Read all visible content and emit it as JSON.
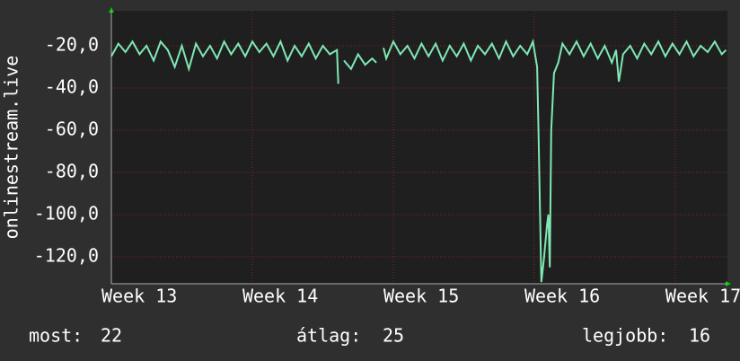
{
  "chart_data": {
    "type": "line",
    "y_label": "onlinestream.live",
    "xlim": [
      13,
      17.37
    ],
    "xticks": [
      {
        "value": 13,
        "label": "Week 13"
      },
      {
        "value": 14,
        "label": "Week 14"
      },
      {
        "value": 15,
        "label": "Week 15"
      },
      {
        "value": 16,
        "label": "Week 16"
      },
      {
        "value": 17,
        "label": "Week 17"
      }
    ],
    "ylim": [
      -132.8,
      -3.4
    ],
    "yticks": [
      {
        "value": -20,
        "label": "-20,0"
      },
      {
        "value": -40,
        "label": "-40,0"
      },
      {
        "value": -60,
        "label": "-60,0"
      },
      {
        "value": -80,
        "label": "-80,0"
      },
      {
        "value": -100,
        "label": "-100,0"
      },
      {
        "value": -120,
        "label": "-120,0"
      }
    ],
    "grid": true,
    "series": [
      {
        "color": "#7fe8b4",
        "x": [
          13.0,
          13.05,
          13.1,
          13.15,
          13.2,
          13.25,
          13.3,
          13.35,
          13.4,
          13.45,
          13.5,
          13.55,
          13.6,
          13.65,
          13.7,
          13.75,
          13.8,
          13.85,
          13.9,
          13.95,
          14.0,
          14.05,
          14.1,
          14.15,
          14.2,
          14.25,
          14.3,
          14.35,
          14.4,
          14.45,
          14.5,
          14.55,
          14.6,
          14.61,
          14.62,
          14.65,
          14.7,
          14.75,
          14.8,
          14.85,
          14.88,
          14.9,
          14.93,
          14.95,
          15.0,
          15.05,
          15.1,
          15.15,
          15.2,
          15.25,
          15.3,
          15.35,
          15.4,
          15.45,
          15.5,
          15.55,
          15.6,
          15.65,
          15.7,
          15.75,
          15.8,
          15.85,
          15.9,
          15.95,
          15.99,
          16.02,
          16.03,
          16.05,
          16.07,
          16.09,
          16.1,
          16.11,
          16.12,
          16.14,
          16.17,
          16.2,
          16.25,
          16.3,
          16.35,
          16.4,
          16.45,
          16.5,
          16.55,
          16.58,
          16.6,
          16.63,
          16.68,
          16.73,
          16.78,
          16.83,
          16.88,
          16.93,
          16.98,
          17.03,
          17.08,
          17.13,
          17.18,
          17.23,
          17.28,
          17.33,
          17.36
        ],
        "values": [
          -25,
          -19,
          -23,
          -18,
          -24,
          -20,
          -27,
          -18,
          -22,
          -30,
          -20,
          -31,
          -19,
          -25,
          -20,
          -26,
          -18,
          -24,
          -19,
          -25,
          -18,
          -23,
          -19,
          -25,
          -18,
          -27,
          -20,
          -25,
          -19,
          -26,
          -20,
          -24,
          -22,
          -38,
          null,
          -27,
          -31,
          -24,
          -29,
          -26,
          -28,
          null,
          -21,
          -26,
          -18,
          -24,
          -20,
          -26,
          -19,
          -25,
          -19,
          -27,
          -20,
          -25,
          -19,
          -27,
          -20,
          -24,
          -19,
          -26,
          -18,
          -25,
          -20,
          -24,
          -18,
          -30,
          -60,
          -132,
          -120,
          -105,
          -100,
          -125,
          -60,
          -33,
          -28,
          -19,
          -24,
          -18,
          -25,
          -19,
          -26,
          -20,
          -28,
          -22,
          -37,
          -24,
          -20,
          -26,
          -19,
          -24,
          -18,
          -25,
          -19,
          -24,
          -18,
          -25,
          -20,
          -23,
          -18,
          -24,
          -22
        ]
      }
    ],
    "legend": [
      {
        "label": "most:",
        "value": 22
      },
      {
        "label": "átlag:",
        "value": 25
      },
      {
        "label": "legjobb:",
        "value": 16
      }
    ]
  }
}
